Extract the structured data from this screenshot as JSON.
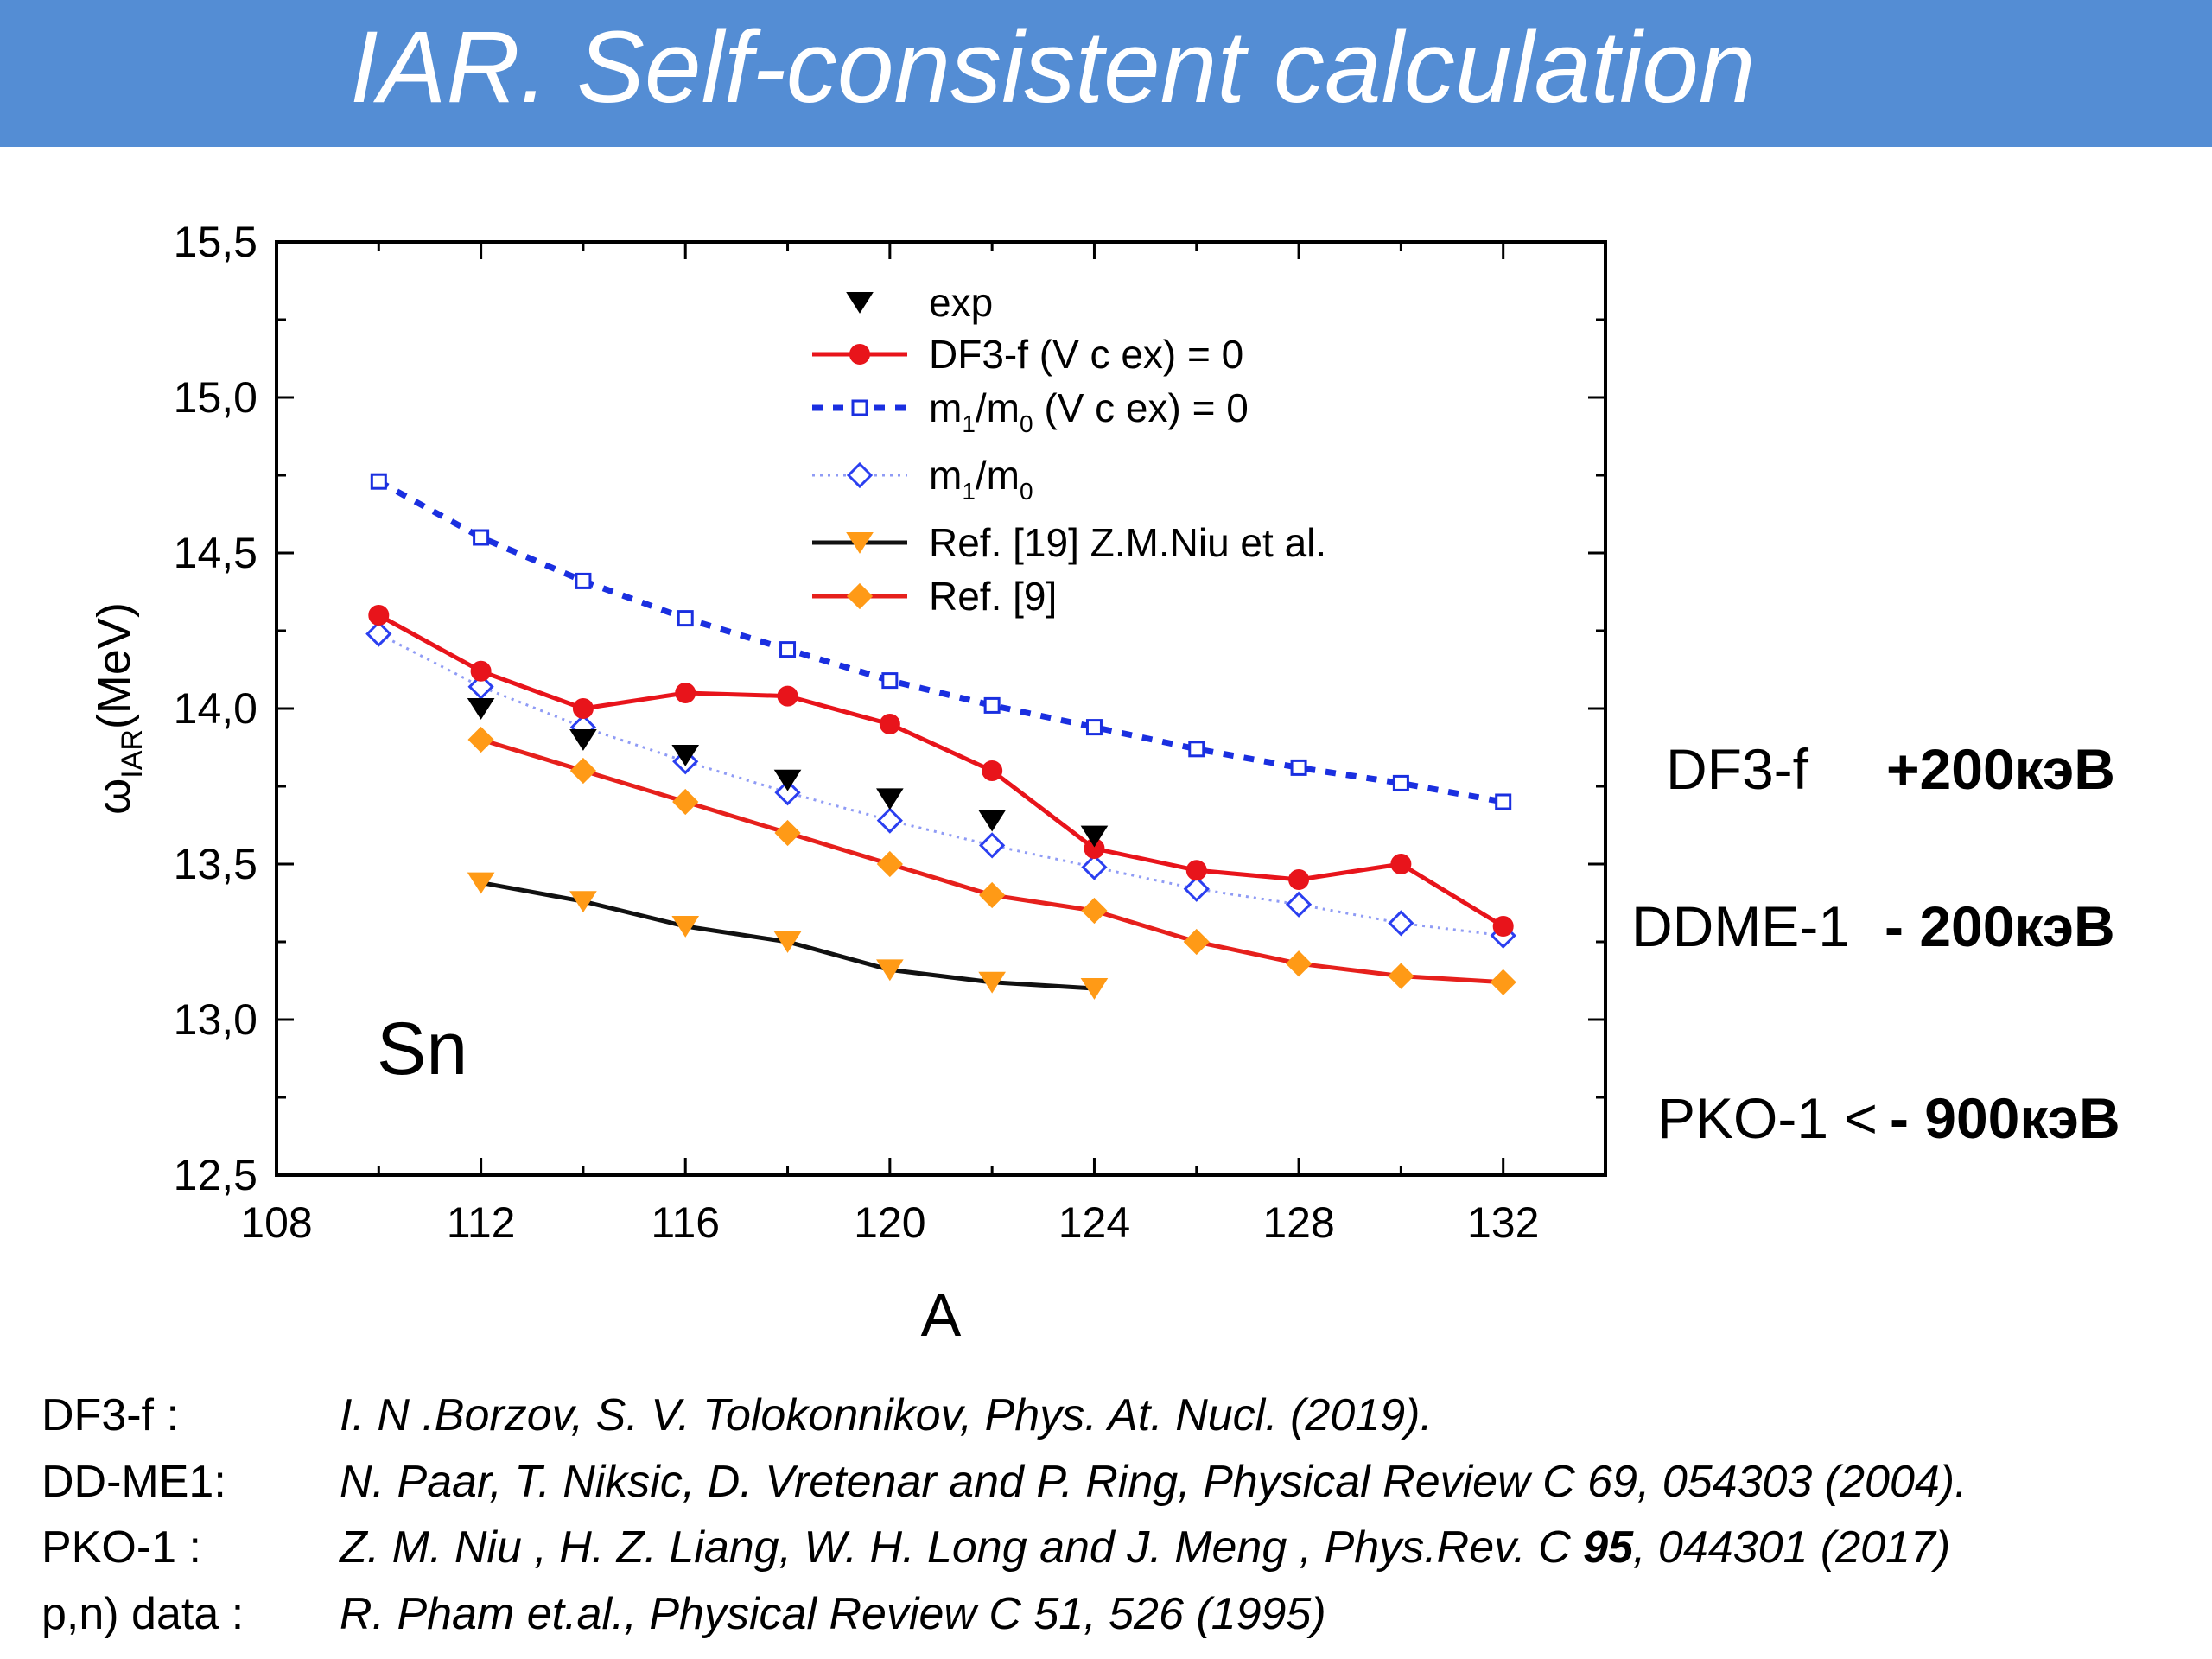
{
  "title": "IAR. Self-consistent calculation",
  "colors": {
    "title_bar": "#548dd4",
    "df3f": "#e8141b",
    "m1m0_vcex": "#1a2fe0",
    "m1m0": "#2b3ff0",
    "niu": "#111111",
    "ref9": "#e6201c",
    "orange_marker": "#ff9a16"
  },
  "chart_data": {
    "type": "line",
    "xlabel": "A",
    "ylabel_main": "ω",
    "ylabel_sub": "IAR",
    "ylabel_unit": "(MeV)",
    "xlim": [
      108,
      134
    ],
    "ylim": [
      12.5,
      15.5
    ],
    "xticks": [
      108,
      112,
      116,
      120,
      124,
      128,
      132
    ],
    "yticks": [
      "12,5",
      "13,0",
      "13,5",
      "14,0",
      "14,5",
      "15,0",
      "15,5"
    ],
    "annotation": "Sn",
    "legend_position": "top-center",
    "series": [
      {
        "key": "exp",
        "name": "exp",
        "style": "marker-only",
        "x": [
          112,
          114,
          116,
          118,
          120,
          122,
          124
        ],
        "y": [
          14.0,
          13.9,
          13.85,
          13.77,
          13.71,
          13.64,
          13.59
        ]
      },
      {
        "key": "df3f",
        "name": "DF3-f (V c ex) = 0",
        "style": "solid-circle",
        "x": [
          110,
          112,
          114,
          116,
          118,
          120,
          122,
          124,
          126,
          128,
          130,
          132
        ],
        "y": [
          14.3,
          14.12,
          14.0,
          14.05,
          14.04,
          13.95,
          13.8,
          13.55,
          13.48,
          13.45,
          13.5,
          13.3
        ]
      },
      {
        "key": "m1m0_vcex",
        "name_main": "m",
        "name_sub1": "1",
        "name_mid": "/m",
        "name_sub2": "0",
        "name_tail": " (V c ex) = 0",
        "style": "dashed-open-square",
        "x": [
          110,
          112,
          114,
          116,
          118,
          120,
          122,
          124,
          126,
          128,
          130,
          132
        ],
        "y": [
          14.73,
          14.55,
          14.41,
          14.29,
          14.19,
          14.09,
          14.01,
          13.94,
          13.87,
          13.81,
          13.76,
          13.7
        ]
      },
      {
        "key": "m1m0",
        "name_main": "m",
        "name_sub1": "1",
        "name_mid": "/m",
        "name_sub2": "0",
        "style": "dotted-open-diamond",
        "x": [
          110,
          112,
          114,
          116,
          118,
          120,
          122,
          124,
          126,
          128,
          130,
          132
        ],
        "y": [
          14.24,
          14.07,
          13.94,
          13.83,
          13.73,
          13.64,
          13.56,
          13.49,
          13.42,
          13.37,
          13.31,
          13.27
        ]
      },
      {
        "key": "niu",
        "name": "Ref. [19] Z.M.Niu et al.",
        "style": "solid-down-triangle",
        "x": [
          112,
          114,
          116,
          118,
          120,
          122,
          124
        ],
        "y": [
          13.44,
          13.38,
          13.3,
          13.25,
          13.16,
          13.12,
          13.1
        ]
      },
      {
        "key": "ref9",
        "name": "Ref. [9]",
        "style": "solid-diamond",
        "x": [
          112,
          114,
          116,
          118,
          120,
          122,
          124,
          126,
          128,
          130,
          132
        ],
        "y": [
          13.9,
          13.8,
          13.7,
          13.6,
          13.5,
          13.4,
          13.35,
          13.25,
          13.18,
          13.14,
          13.12
        ]
      }
    ]
  },
  "side_notes": [
    {
      "name": "DF3-f",
      "value": "+200кэВ"
    },
    {
      "name": "DDME-1",
      "value": "- 200кэВ"
    },
    {
      "name": "PKO-1  <",
      "value": "- 900кэВ"
    }
  ],
  "references": [
    {
      "name": "DF3-f :",
      "cite": "I. N .Borzov,  S. V. Tolokonnikov, Phys. At. Nucl. (2019)."
    },
    {
      "name": "DD-ME1:",
      "cite": "N. Paar, T. Niksic, D. Vretenar and P. Ring, Physical Review C 69, 054303 (2004)."
    },
    {
      "name": "PKO-1 :",
      "cite_pre": "Z. M. Niu , H. Z. Liang, W. H. Long and J. Meng , Phys.Rev. C ",
      "cite_bold": "95",
      "cite_post": ", 044301 (2017)"
    },
    {
      "name": "p,n) data :",
      "cite": "R. Pham et.al.,  Physical Review C 51, 526 (1995)"
    }
  ]
}
